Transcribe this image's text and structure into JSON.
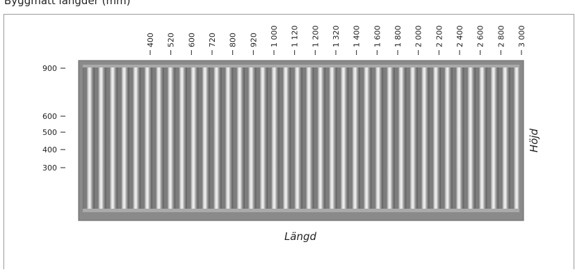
{
  "header": {
    "title": "Byggmått längder (mm)"
  },
  "length_labels": [
    "400",
    "520",
    "600",
    "720",
    "800",
    "920",
    "1 000",
    "1 120",
    "1 200",
    "1 320",
    "1 400",
    "1 600",
    "1 800",
    "2 000",
    "2 200",
    "2 400",
    "2 600",
    "2 800",
    "3 000"
  ],
  "height_labels": [
    "900",
    "600",
    "500",
    "400",
    "300"
  ],
  "axis_labels": {
    "length": "Längd",
    "height": "Höjd"
  }
}
